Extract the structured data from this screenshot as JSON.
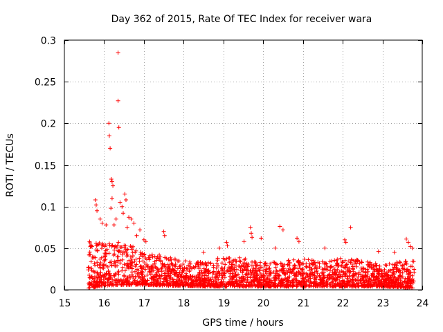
{
  "chart_data": {
    "type": "scatter",
    "title": "Day 362 of 2015, Rate Of TEC Index for receiver wara",
    "xlabel": "GPS time / hours",
    "ylabel": "ROTI / TECUs",
    "xlim": [
      15,
      24
    ],
    "ylim": [
      0,
      0.3
    ],
    "xticks": [
      15,
      16,
      17,
      18,
      19,
      20,
      21,
      22,
      23,
      24
    ],
    "xtick_labels": [
      "15",
      "16",
      "17",
      "18",
      "19",
      "20",
      "21",
      "22",
      "23",
      "24"
    ],
    "yticks": [
      0,
      0.05,
      0.1,
      0.15,
      0.2,
      0.25,
      0.3
    ],
    "ytick_labels": [
      "0",
      "0.05",
      "0.1",
      "0.15",
      "0.2",
      "0.25",
      "0.3"
    ],
    "grid": true,
    "legend": "none",
    "marker": "+",
    "colors": {
      "series": "#ff0000",
      "grid": "#a0a0a0",
      "axis": "#000000"
    },
    "series": [
      {
        "name": "ROTI",
        "outliers": [
          [
            16.35,
            0.285
          ],
          [
            16.35,
            0.227
          ],
          [
            16.37,
            0.195
          ],
          [
            16.12,
            0.2
          ],
          [
            16.13,
            0.185
          ],
          [
            16.15,
            0.17
          ],
          [
            16.18,
            0.133
          ],
          [
            16.2,
            0.13
          ],
          [
            16.22,
            0.125
          ],
          [
            16.2,
            0.11
          ],
          [
            16.17,
            0.098
          ],
          [
            15.78,
            0.108
          ],
          [
            15.8,
            0.102
          ],
          [
            15.82,
            0.095
          ],
          [
            16.4,
            0.105
          ],
          [
            16.45,
            0.1
          ],
          [
            16.52,
            0.115
          ],
          [
            16.55,
            0.108
          ],
          [
            16.48,
            0.092
          ],
          [
            16.62,
            0.087
          ],
          [
            16.68,
            0.085
          ],
          [
            16.75,
            0.08
          ],
          [
            16.3,
            0.085
          ],
          [
            15.9,
            0.085
          ],
          [
            15.95,
            0.08
          ],
          [
            16.05,
            0.078
          ],
          [
            16.25,
            0.078
          ],
          [
            16.58,
            0.075
          ],
          [
            17.5,
            0.07
          ],
          [
            17.52,
            0.065
          ],
          [
            19.68,
            0.075
          ],
          [
            19.7,
            0.068
          ],
          [
            19.72,
            0.063
          ],
          [
            20.42,
            0.076
          ],
          [
            20.5,
            0.072
          ],
          [
            20.85,
            0.062
          ],
          [
            20.9,
            0.058
          ],
          [
            19.95,
            0.062
          ],
          [
            19.52,
            0.058
          ],
          [
            19.08,
            0.057
          ],
          [
            19.1,
            0.053
          ],
          [
            22.2,
            0.075
          ],
          [
            22.05,
            0.06
          ],
          [
            22.08,
            0.057
          ],
          [
            23.6,
            0.061
          ],
          [
            23.65,
            0.057
          ],
          [
            23.7,
            0.052
          ],
          [
            23.75,
            0.05
          ],
          [
            17.0,
            0.06
          ],
          [
            17.05,
            0.058
          ],
          [
            18.5,
            0.045
          ],
          [
            18.9,
            0.05
          ],
          [
            21.55,
            0.05
          ],
          [
            22.9,
            0.046
          ],
          [
            23.3,
            0.045
          ],
          [
            16.9,
            0.072
          ],
          [
            16.82,
            0.065
          ],
          [
            20.3,
            0.05
          ]
        ],
        "envelope": {
          "hours": [
            15.6,
            16.0,
            16.5,
            17.0,
            17.5,
            18.0,
            18.5,
            19.0,
            19.5,
            20.0,
            20.5,
            21.0,
            21.5,
            22.0,
            22.5,
            23.0,
            23.5,
            23.8
          ],
          "upper": [
            0.06,
            0.055,
            0.058,
            0.045,
            0.042,
            0.035,
            0.033,
            0.04,
            0.038,
            0.032,
            0.035,
            0.038,
            0.034,
            0.04,
            0.035,
            0.03,
            0.035,
            0.035
          ],
          "lower": [
            0.002,
            0.005,
            0.006,
            0.006,
            0.005,
            0.005,
            0.004,
            0.004,
            0.004,
            0.004,
            0.004,
            0.004,
            0.004,
            0.004,
            0.004,
            0.004,
            0.003,
            0.002
          ],
          "start_hour": 15.6,
          "end_hour": 23.8,
          "approx_points": 2400
        }
      }
    ]
  }
}
